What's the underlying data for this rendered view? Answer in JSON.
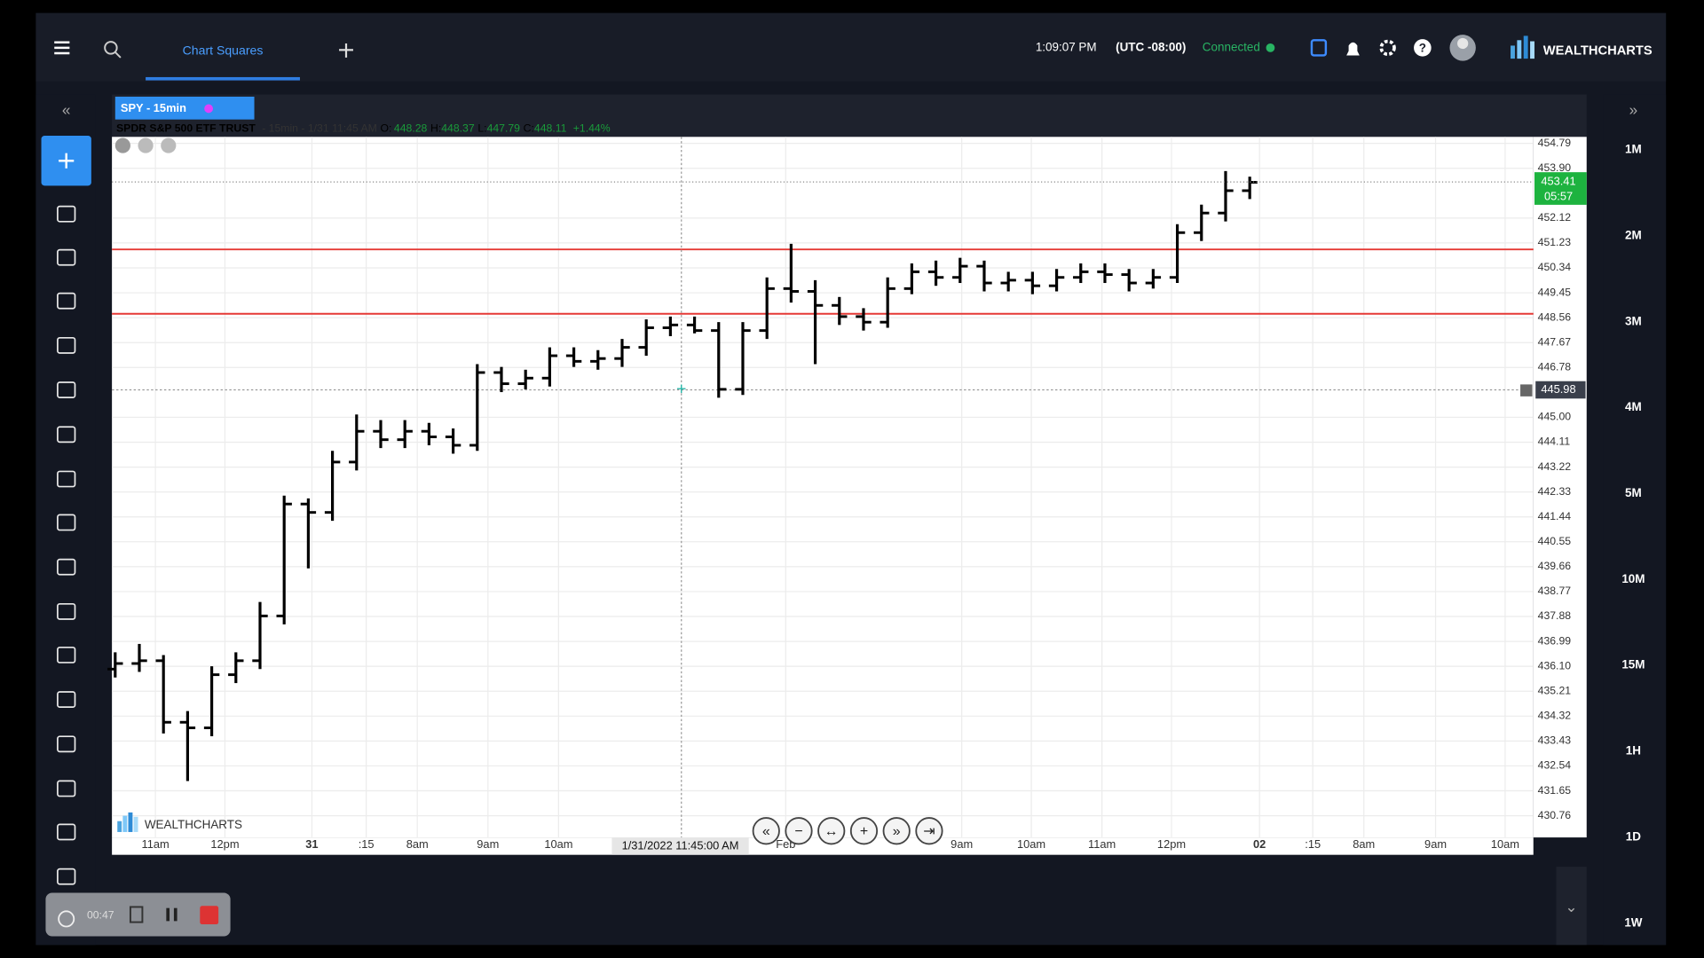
{
  "header": {
    "tab": "Chart Squares",
    "time": "1:09:07 PM",
    "timezone": "(UTC -08:00)",
    "status": "Connected",
    "brand": "WEALTHCHARTS"
  },
  "symbol_tab": "SPY - 15min",
  "info": {
    "name": "SPDR S&P 500 ETF TRUST",
    "detail": "- 15min - 1/31 11:45 AM",
    "o_label": "O:",
    "open": 448.28,
    "h_label": "H:",
    "high": 448.37,
    "l_label": "L:",
    "low": 447.79,
    "c_label": "C:",
    "close": 448.11,
    "change": "+1.44%"
  },
  "chart_data": {
    "type": "ohlc",
    "color": "#000000",
    "grid": true,
    "open": [
      436.0,
      436.2,
      436.3,
      434.1,
      433.9,
      435.8,
      436.3,
      437.9,
      441.9,
      441.6,
      443.4,
      444.5,
      444.2,
      444.5,
      444.3,
      444.0,
      446.6,
      446.2,
      446.4,
      447.2,
      447.0,
      447.1,
      447.5,
      448.2,
      448.3,
      448.1,
      446.0,
      448.1,
      449.6,
      449.5,
      449.0,
      448.6,
      448.4,
      449.6,
      450.2,
      450.0,
      450.4,
      449.8,
      449.9,
      449.7,
      450.0,
      450.2,
      450.1,
      449.8,
      450.0,
      451.6,
      452.3,
      453.1
    ],
    "high": [
      436.6,
      436.9,
      436.5,
      434.5,
      436.1,
      436.6,
      438.4,
      442.2,
      442.1,
      443.8,
      445.1,
      444.9,
      444.9,
      444.8,
      444.6,
      446.9,
      446.8,
      446.7,
      447.5,
      447.5,
      447.4,
      447.8,
      448.5,
      448.6,
      448.6,
      448.4,
      448.4,
      450.0,
      451.2,
      449.9,
      449.3,
      448.9,
      450.0,
      450.5,
      450.6,
      450.7,
      450.6,
      450.2,
      450.2,
      450.3,
      450.5,
      450.5,
      450.3,
      450.3,
      451.9,
      452.6,
      453.8,
      453.6
    ],
    "low": [
      435.7,
      435.9,
      433.7,
      432.0,
      433.6,
      435.5,
      436.0,
      437.6,
      439.6,
      441.3,
      443.1,
      443.9,
      443.9,
      444.0,
      443.7,
      443.8,
      445.9,
      446.0,
      446.1,
      446.8,
      446.7,
      446.8,
      447.2,
      447.9,
      448.0,
      445.7,
      445.8,
      447.8,
      449.1,
      446.9,
      448.3,
      448.1,
      448.2,
      449.4,
      449.7,
      449.8,
      449.5,
      449.5,
      449.4,
      449.5,
      449.8,
      449.8,
      449.5,
      449.6,
      449.8,
      451.3,
      452.0,
      452.8
    ],
    "close": [
      436.2,
      436.3,
      434.1,
      433.9,
      435.8,
      436.3,
      437.9,
      441.9,
      441.6,
      443.4,
      444.5,
      444.2,
      444.5,
      444.3,
      444.0,
      446.6,
      446.2,
      446.4,
      447.2,
      447.0,
      447.1,
      447.5,
      448.2,
      448.3,
      448.1,
      446.0,
      448.1,
      449.6,
      449.5,
      449.0,
      448.6,
      448.4,
      449.6,
      450.2,
      450.0,
      450.4,
      449.8,
      449.9,
      449.7,
      450.0,
      450.2,
      450.1,
      449.8,
      450.0,
      451.6,
      452.3,
      453.1,
      453.4
    ],
    "ylim": [
      430.76,
      454.79
    ],
    "yticks": [
      454.79,
      {
        "value": 453.9,
        "label": "453.90"
      },
      452.12,
      451.23,
      450.34,
      449.45,
      448.56,
      447.67,
      446.78,
      {
        "value": 445.0,
        "label": "445.00"
      },
      444.11,
      443.22,
      442.33,
      441.44,
      440.55,
      439.66,
      438.77,
      437.88,
      436.99,
      {
        "value": 436.1,
        "label": "436.10"
      },
      435.21,
      434.32,
      433.43,
      432.54,
      431.65,
      430.76
    ],
    "x_tick_labels": [
      "11am",
      "12pm",
      "31",
      ":15",
      "8am",
      "9am",
      "10am",
      "Feb",
      "9am",
      "10am",
      "11am",
      "12pm",
      "02",
      ":15",
      "8am",
      "9am",
      "10am"
    ],
    "levels": [
      451.0,
      448.7
    ],
    "level_color": "#e53935",
    "last_price": 453.41,
    "countdown": "05:57",
    "crosshair_price": 445.98,
    "crosshair_time": "1/31/2022 11:45:00 AM",
    "watermark": "WEALTHCHARTS"
  },
  "intervals": [
    "1M",
    "2M",
    "3M",
    "4M",
    "5M",
    "10M",
    "15M",
    "1H",
    "1D",
    "1W"
  ],
  "recorder": {
    "elapsed": "00:47"
  }
}
